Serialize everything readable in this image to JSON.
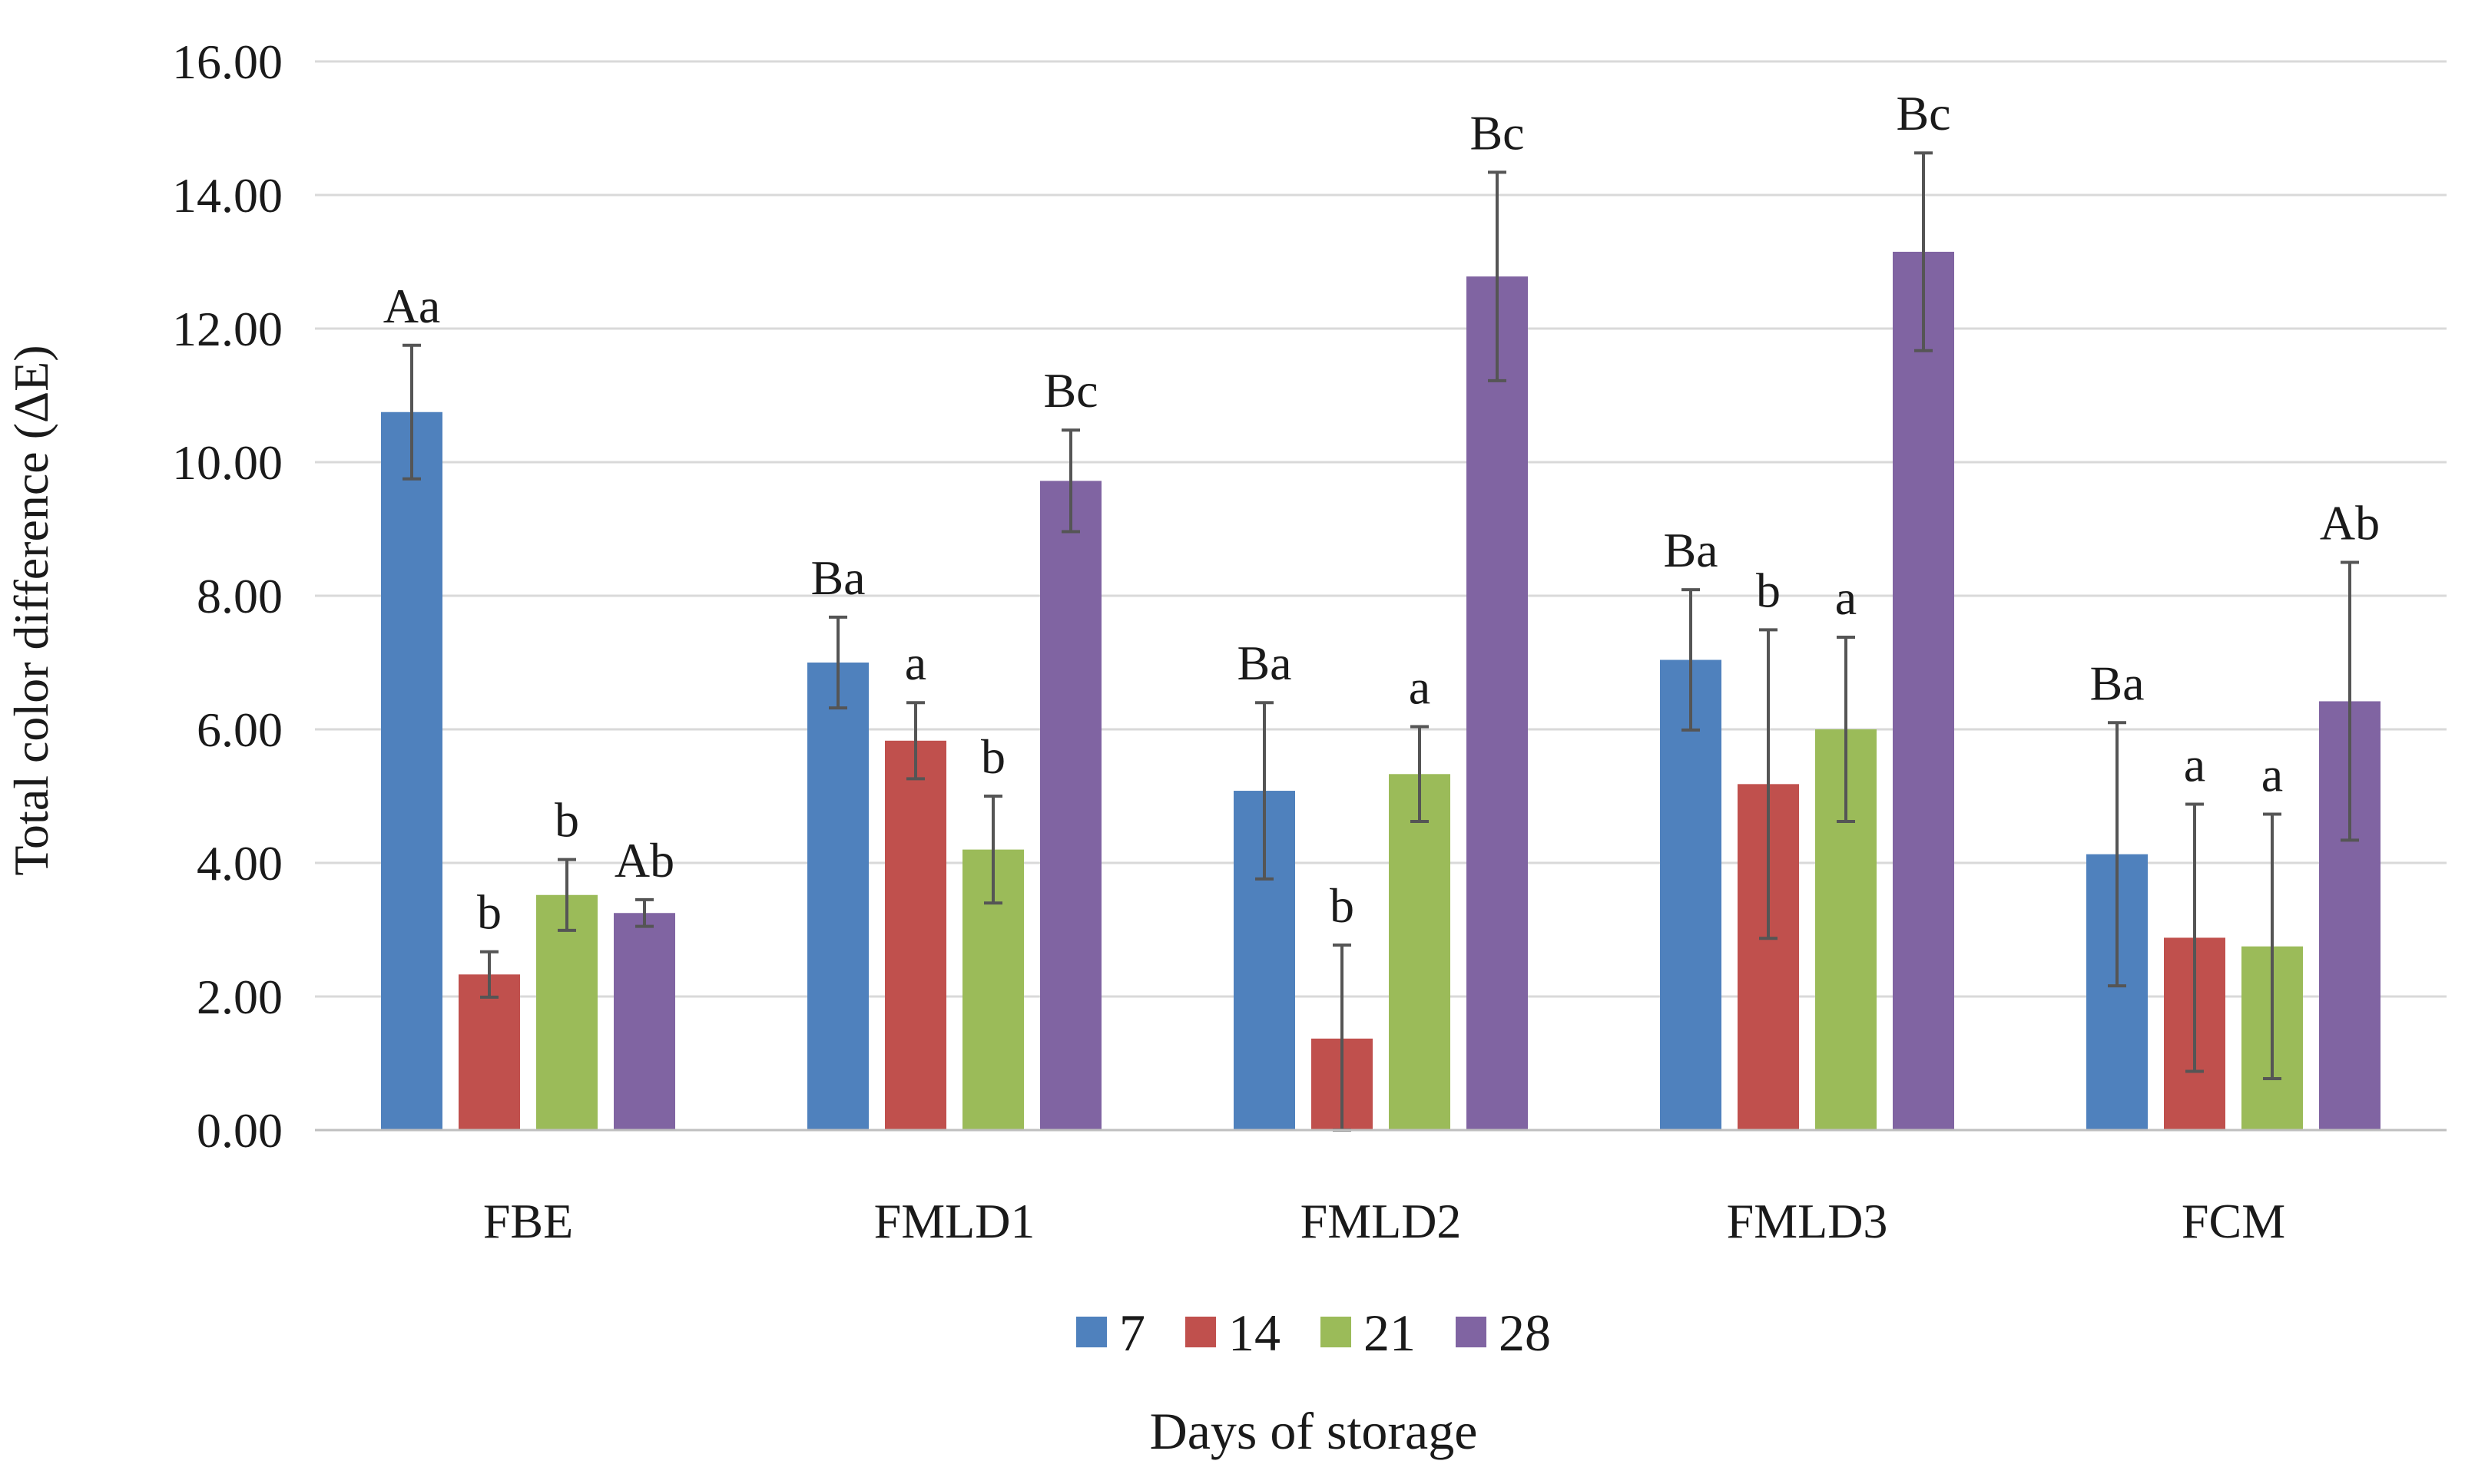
{
  "chart_data": {
    "type": "bar",
    "title": "",
    "xlabel": "Days of storage",
    "ylabel": "Total color difference (ΔE)",
    "ylim": [
      0,
      16
    ],
    "yticks": [
      "0.00",
      "2.00",
      "4.00",
      "6.00",
      "8.00",
      "10.00",
      "12.00",
      "14.00",
      "16.00"
    ],
    "grid": true,
    "legend_position": "bottom",
    "categories": [
      "FBE",
      "FMLD1",
      "FMLD2",
      "FMLD3",
      "FCM"
    ],
    "series": [
      {
        "name": "7",
        "color": "#4f81bd",
        "values": [
          10.75,
          7.0,
          5.08,
          7.04,
          4.13
        ],
        "errors": [
          1.0,
          0.68,
          1.32,
          1.05,
          1.97
        ],
        "labels": [
          "Aa",
          "Ba",
          "Ba",
          "Ba",
          "Ba"
        ]
      },
      {
        "name": "14",
        "color": "#c0504d",
        "values": [
          2.33,
          5.83,
          1.37,
          5.18,
          2.88
        ],
        "errors": [
          0.34,
          0.57,
          1.4,
          2.31,
          2.0
        ],
        "labels": [
          "b",
          "a",
          "b",
          "b",
          "a"
        ]
      },
      {
        "name": "21",
        "color": "#9bbb59",
        "values": [
          3.52,
          4.2,
          5.33,
          6.0,
          2.75
        ],
        "errors": [
          0.53,
          0.8,
          0.71,
          1.38,
          1.98
        ],
        "labels": [
          "b",
          "b",
          "a",
          "a",
          "a"
        ]
      },
      {
        "name": "28",
        "color": "#8064a2",
        "values": [
          3.25,
          9.72,
          12.78,
          13.15,
          6.42
        ],
        "errors": [
          0.2,
          0.76,
          1.56,
          1.48,
          2.08
        ],
        "labels": [
          "Ab",
          "Bc",
          "Bc",
          "Bc",
          "Ab"
        ]
      }
    ]
  }
}
